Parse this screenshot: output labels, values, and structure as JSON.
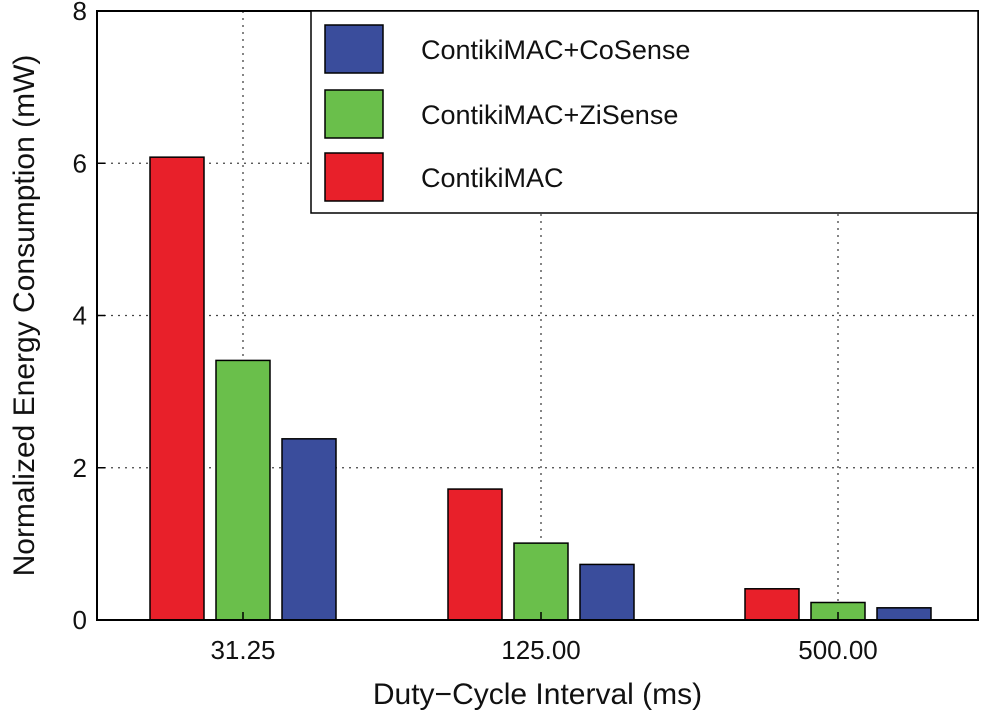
{
  "chart_data": {
    "type": "bar",
    "title": "",
    "xlabel": "Duty−Cycle Interval (ms)",
    "ylabel": "Normalized Energy Consumption (mW)",
    "ylim": [
      0,
      8
    ],
    "yticks": [
      "0",
      "2",
      "4",
      "6",
      "8"
    ],
    "categories": [
      "31.25",
      "125.00",
      "500.00"
    ],
    "grid": true,
    "legend_position": "top-right",
    "series": [
      {
        "name": "ContikiMAC",
        "color": "#e8202a",
        "values": [
          6.08,
          1.72,
          0.41
        ]
      },
      {
        "name": "ContikiMAC+ZiSense",
        "color": "#6abf4b",
        "values": [
          3.41,
          1.01,
          0.23
        ]
      },
      {
        "name": "ContikiMAC+CoSense",
        "color": "#3a4d9c",
        "values": [
          2.38,
          0.73,
          0.16
        ]
      }
    ],
    "legend_order": [
      "ContikiMAC+CoSense",
      "ContikiMAC+ZiSense",
      "ContikiMAC"
    ]
  }
}
